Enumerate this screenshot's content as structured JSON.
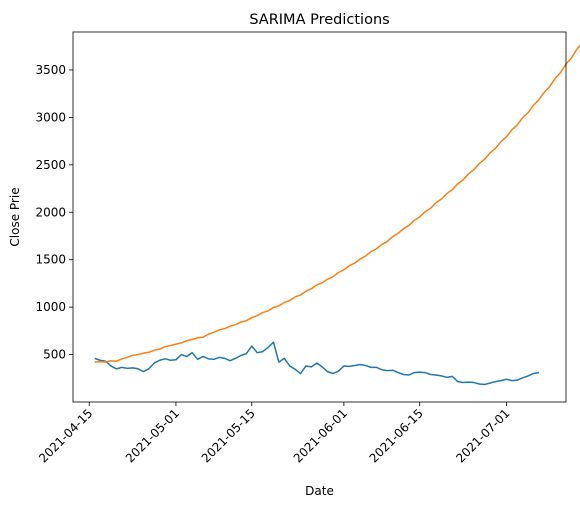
{
  "chart_data": {
    "type": "line",
    "title": "SARIMA Predictions",
    "xlabel": "Date",
    "ylabel": "Close Prie",
    "x_start": "2021-04-16",
    "x_ticks": [
      "2021-04-15",
      "2021-05-01",
      "2021-05-15",
      "2021-06-01",
      "2021-06-15",
      "2021-07-01"
    ],
    "xlim": [
      "2021-04-12",
      "2021-07-12"
    ],
    "y_ticks": [
      500,
      1000,
      1500,
      2000,
      2500,
      3000,
      3500
    ],
    "ylim": [
      0,
      3900
    ],
    "grid": false,
    "series": [
      {
        "color": "#1f77b4",
        "values": [
          460,
          440,
          430,
          380,
          350,
          365,
          355,
          360,
          350,
          320,
          350,
          410,
          440,
          455,
          440,
          445,
          500,
          480,
          520,
          450,
          480,
          455,
          450,
          470,
          460,
          435,
          460,
          490,
          510,
          590,
          520,
          530,
          575,
          630,
          420,
          460,
          380,
          345,
          300,
          380,
          370,
          410,
          370,
          320,
          300,
          325,
          380,
          375,
          385,
          395,
          385,
          365,
          365,
          340,
          330,
          335,
          310,
          290,
          285,
          310,
          315,
          310,
          290,
          285,
          275,
          260,
          270,
          215,
          205,
          210,
          205,
          190,
          185,
          200,
          215,
          225,
          240,
          225,
          230,
          255,
          275,
          300,
          310
        ]
      },
      {
        "color": "#ff7f0e",
        "values": [
          420,
          426,
          422,
          434,
          430,
          454,
          470,
          492,
          500,
          515,
          524,
          546,
          557,
          583,
          595,
          610,
          623,
          646,
          659,
          676,
          683,
          714,
          735,
          760,
          773,
          800,
          815,
          843,
          857,
          890,
          910,
          943,
          960,
          996,
          1013,
          1049,
          1070,
          1107,
          1128,
          1168,
          1194,
          1233,
          1257,
          1295,
          1321,
          1365,
          1394,
          1436,
          1464,
          1507,
          1538,
          1585,
          1614,
          1660,
          1691,
          1743,
          1777,
          1827,
          1861,
          1915,
          1952,
          2005,
          2042,
          2100,
          2140,
          2198,
          2238,
          2299,
          2342,
          2404,
          2450,
          2513,
          2560,
          2627,
          2675,
          2745,
          2795,
          2869,
          2920,
          2997,
          3050,
          3129,
          3186,
          3266,
          3326,
          3412,
          3473,
          3563,
          3626,
          3720,
          3785
        ]
      }
    ]
  }
}
